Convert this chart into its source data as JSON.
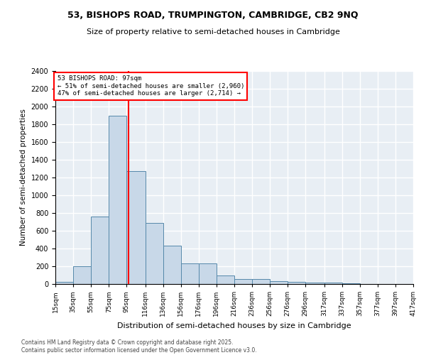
{
  "title1": "53, BISHOPS ROAD, TRUMPINGTON, CAMBRIDGE, CB2 9NQ",
  "title2": "Size of property relative to semi-detached houses in Cambridge",
  "xlabel": "Distribution of semi-detached houses by size in Cambridge",
  "ylabel": "Number of semi-detached properties",
  "bin_edges": [
    15,
    35,
    55,
    75,
    95,
    116,
    136,
    156,
    176,
    196,
    216,
    236,
    256,
    276,
    296,
    317,
    337,
    357,
    377,
    397,
    417
  ],
  "bar_heights": [
    25,
    200,
    760,
    1900,
    1270,
    690,
    430,
    230,
    230,
    100,
    60,
    60,
    35,
    25,
    20,
    20,
    5,
    0,
    0,
    0
  ],
  "bar_color": "#c8d8e8",
  "bar_edgecolor": "#5588aa",
  "vline_x": 97,
  "vline_color": "red",
  "annotation_title": "53 BISHOPS ROAD: 97sqm",
  "annotation_line1": "← 51% of semi-detached houses are smaller (2,960)",
  "annotation_line2": "47% of semi-detached houses are larger (2,714) →",
  "annotation_box_color": "white",
  "annotation_box_edgecolor": "red",
  "ylim": [
    0,
    2400
  ],
  "yticks": [
    0,
    200,
    400,
    600,
    800,
    1000,
    1200,
    1400,
    1600,
    1800,
    2000,
    2200,
    2400
  ],
  "background_color": "#e8eef4",
  "grid_color": "white",
  "footer_line1": "Contains HM Land Registry data © Crown copyright and database right 2025.",
  "footer_line2": "Contains public sector information licensed under the Open Government Licence v3.0."
}
